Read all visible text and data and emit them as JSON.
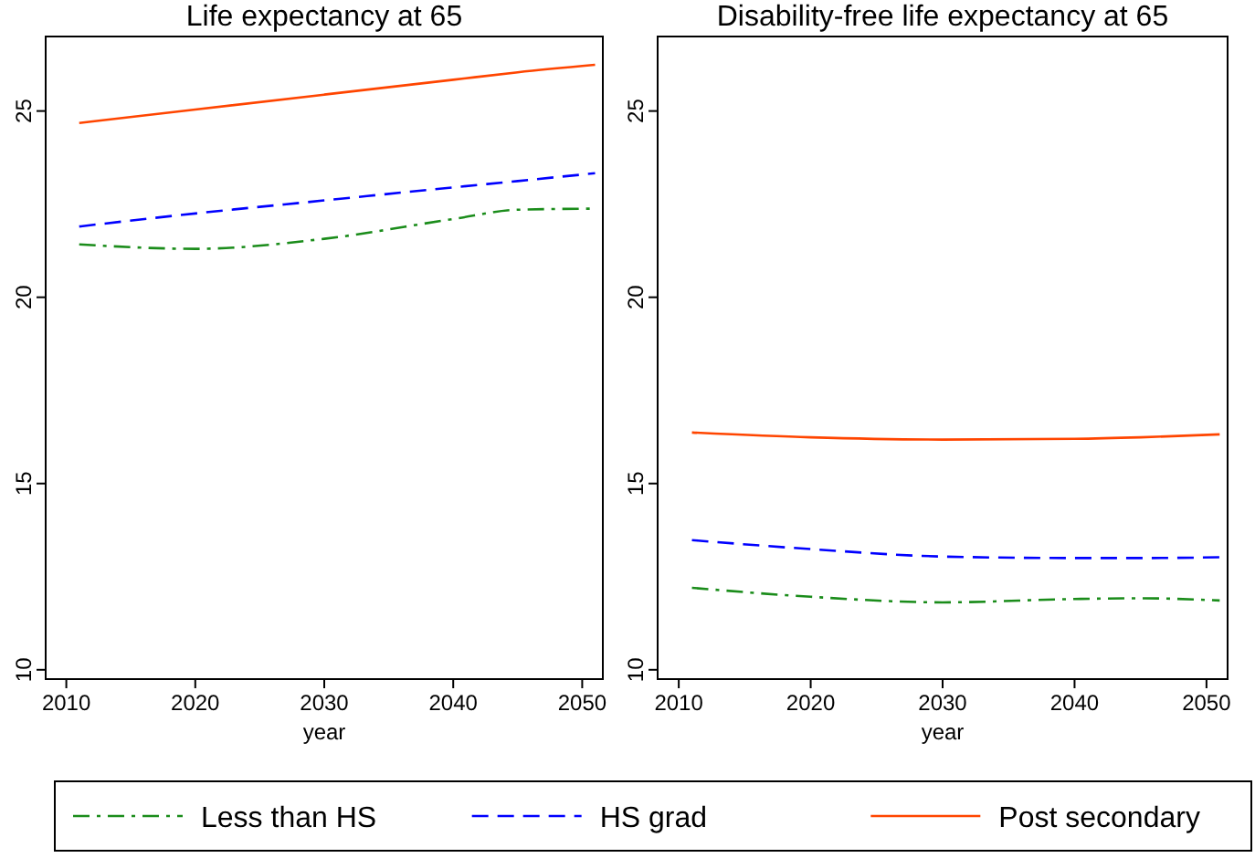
{
  "chart_data": [
    {
      "type": "line",
      "title": "Life expectancy at 65",
      "xlabel": "year",
      "xlim": [
        2008.4,
        2051.6
      ],
      "xticks": [
        2010,
        2020,
        2030,
        2040,
        2050
      ],
      "ylim": [
        9.75,
        27
      ],
      "yticks": [
        10,
        15,
        20,
        25
      ],
      "grid": false,
      "legend": "bottom",
      "marker": "none",
      "x": [
        2011,
        2020,
        2030,
        2040,
        2045,
        2051
      ],
      "series": [
        {
          "name": "Less than HS",
          "color": "#1a8c1a",
          "line_style": "dashdot",
          "values": [
            21.42,
            21.3,
            21.57,
            22.1,
            22.35,
            22.38
          ]
        },
        {
          "name": "HS grad",
          "color": "#0000ff",
          "line_style": "dashed",
          "values": [
            21.9,
            22.25,
            22.6,
            22.95,
            23.12,
            23.33
          ]
        },
        {
          "name": "Post secondary",
          "color": "#ff4500",
          "line_style": "solid",
          "values": [
            24.68,
            25.04,
            25.44,
            25.84,
            26.04,
            26.24
          ]
        }
      ]
    },
    {
      "type": "line",
      "title": "Disability-free life expectancy at 65",
      "xlabel": "year",
      "xlim": [
        2008.4,
        2051.6
      ],
      "xticks": [
        2010,
        2020,
        2030,
        2040,
        2050
      ],
      "ylim": [
        9.75,
        27
      ],
      "yticks": [
        10,
        15,
        20,
        25
      ],
      "grid": false,
      "marker": "none",
      "x": [
        2011,
        2020,
        2030,
        2040,
        2045,
        2051
      ],
      "series": [
        {
          "color": "#1a8c1a",
          "line_style": "dashdot",
          "values": [
            12.2,
            11.96,
            11.81,
            11.9,
            11.92,
            11.86
          ]
        },
        {
          "color": "#0000ff",
          "line_style": "dashed",
          "values": [
            13.48,
            13.24,
            13.04,
            13.0,
            13.0,
            13.02
          ]
        },
        {
          "color": "#ff4500",
          "line_style": "solid",
          "values": [
            16.37,
            16.24,
            16.18,
            16.2,
            16.24,
            16.32
          ]
        }
      ]
    }
  ]
}
